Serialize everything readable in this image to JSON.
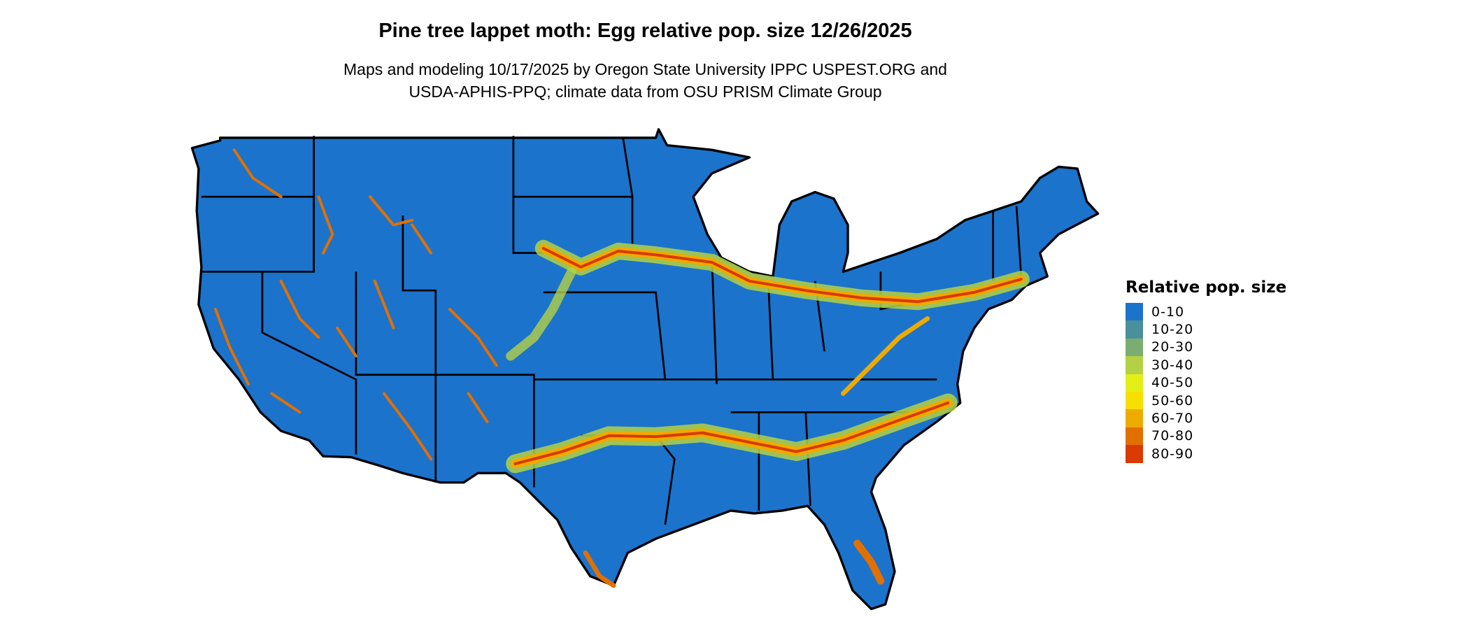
{
  "title": "Pine tree lappet moth: Egg relative pop. size 12/26/2025",
  "subtitle_line1": "Maps and modeling 10/17/2025 by Oregon State University IPPC USPEST.ORG and",
  "subtitle_line2": "USDA-APHIS-PPQ; climate data from OSU PRISM Climate Group",
  "legend": {
    "title": "Relative pop. size",
    "items": [
      {
        "label": "0-10",
        "color": "#1b73cc"
      },
      {
        "label": "10-20",
        "color": "#4a8f9c"
      },
      {
        "label": "20-30",
        "color": "#7aad6f"
      },
      {
        "label": "30-40",
        "color": "#b3d143"
      },
      {
        "label": "40-50",
        "color": "#e4ef18"
      },
      {
        "label": "50-60",
        "color": "#f7e000"
      },
      {
        "label": "60-70",
        "color": "#efaa00"
      },
      {
        "label": "70-80",
        "color": "#e27000"
      },
      {
        "label": "80-90",
        "color": "#d93a00"
      }
    ]
  },
  "map": {
    "region": "Contiguous United States",
    "base_color": "#1b73cc",
    "border_color": "#000000"
  }
}
